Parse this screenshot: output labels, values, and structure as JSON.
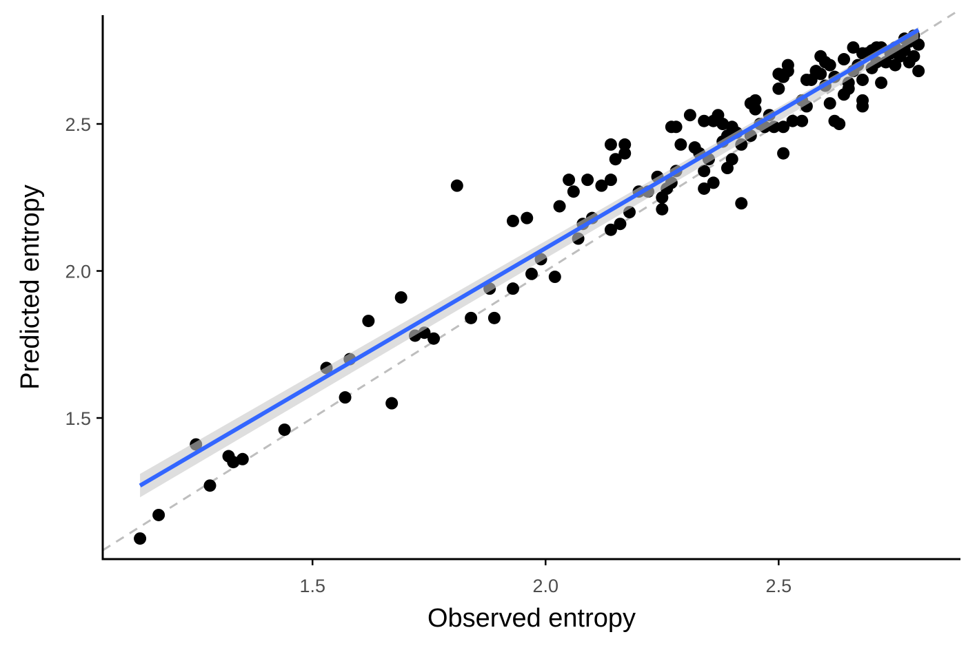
{
  "chart_data": {
    "type": "scatter",
    "title": "",
    "xlabel": "Observed entropy",
    "ylabel": "Predicted entropy",
    "xlim": [
      1.05,
      2.89
    ],
    "ylim": [
      1.02,
      2.87
    ],
    "x_ticks": [
      1.5,
      2.0,
      2.5
    ],
    "y_ticks": [
      1.5,
      2.0,
      2.5
    ],
    "x_tick_labels": [
      "1.5",
      "2.0",
      "2.5"
    ],
    "y_tick_labels": [
      "1.5",
      "2.0",
      "2.5"
    ],
    "grid": false,
    "legend": "none",
    "colors": {
      "points": "#000000",
      "fit_line": "#3366FF",
      "confidence_band": "#c8c8c8",
      "identity_line": "#bebebe",
      "axis": "#000000",
      "tick_labels": "#4d4d4d"
    },
    "identity_line": {
      "slope": 1,
      "intercept": 0,
      "style": "dashed"
    },
    "fit_line": {
      "x": [
        1.13,
        2.8
      ],
      "y": [
        1.27,
        2.82
      ],
      "ci_upper": [
        1.31,
        2.83
      ],
      "ci_lower": [
        1.23,
        2.79
      ]
    },
    "points": [
      [
        1.13,
        1.09
      ],
      [
        1.17,
        1.17
      ],
      [
        1.25,
        1.41
      ],
      [
        1.28,
        1.27
      ],
      [
        1.32,
        1.37
      ],
      [
        1.33,
        1.35
      ],
      [
        1.35,
        1.36
      ],
      [
        1.44,
        1.46
      ],
      [
        1.53,
        1.67
      ],
      [
        1.57,
        1.57
      ],
      [
        1.58,
        1.7
      ],
      [
        1.62,
        1.83
      ],
      [
        1.67,
        1.55
      ],
      [
        1.69,
        1.91
      ],
      [
        1.72,
        1.78
      ],
      [
        1.74,
        1.79
      ],
      [
        1.76,
        1.77
      ],
      [
        1.81,
        2.29
      ],
      [
        1.84,
        1.84
      ],
      [
        1.88,
        1.94
      ],
      [
        1.89,
        1.84
      ],
      [
        1.93,
        2.17
      ],
      [
        1.93,
        1.94
      ],
      [
        1.96,
        2.18
      ],
      [
        1.97,
        1.99
      ],
      [
        1.99,
        2.04
      ],
      [
        2.02,
        1.98
      ],
      [
        2.03,
        2.22
      ],
      [
        2.05,
        2.31
      ],
      [
        2.06,
        2.27
      ],
      [
        2.07,
        2.11
      ],
      [
        2.08,
        2.16
      ],
      [
        2.09,
        2.31
      ],
      [
        2.1,
        2.18
      ],
      [
        2.12,
        2.29
      ],
      [
        2.14,
        2.14
      ],
      [
        2.14,
        2.43
      ],
      [
        2.14,
        2.31
      ],
      [
        2.15,
        2.38
      ],
      [
        2.16,
        2.16
      ],
      [
        2.17,
        2.43
      ],
      [
        2.17,
        2.4
      ],
      [
        2.18,
        2.2
      ],
      [
        2.2,
        2.27
      ],
      [
        2.22,
        2.27
      ],
      [
        2.24,
        2.32
      ],
      [
        2.25,
        2.21
      ],
      [
        2.25,
        2.25
      ],
      [
        2.26,
        2.28
      ],
      [
        2.27,
        2.3
      ],
      [
        2.27,
        2.49
      ],
      [
        2.28,
        2.34
      ],
      [
        2.28,
        2.49
      ],
      [
        2.29,
        2.43
      ],
      [
        2.31,
        2.53
      ],
      [
        2.32,
        2.42
      ],
      [
        2.33,
        2.4
      ],
      [
        2.34,
        2.34
      ],
      [
        2.34,
        2.51
      ],
      [
        2.34,
        2.28
      ],
      [
        2.35,
        2.38
      ],
      [
        2.36,
        2.3
      ],
      [
        2.36,
        2.51
      ],
      [
        2.37,
        2.53
      ],
      [
        2.38,
        2.5
      ],
      [
        2.38,
        2.44
      ],
      [
        2.39,
        2.35
      ],
      [
        2.39,
        2.46
      ],
      [
        2.4,
        2.38
      ],
      [
        2.4,
        2.49
      ],
      [
        2.41,
        2.47
      ],
      [
        2.42,
        2.43
      ],
      [
        2.42,
        2.23
      ],
      [
        2.44,
        2.46
      ],
      [
        2.44,
        2.57
      ],
      [
        2.45,
        2.58
      ],
      [
        2.45,
        2.55
      ],
      [
        2.46,
        2.5
      ],
      [
        2.47,
        2.49
      ],
      [
        2.48,
        2.53
      ],
      [
        2.49,
        2.49
      ],
      [
        2.5,
        2.67
      ],
      [
        2.5,
        2.62
      ],
      [
        2.51,
        2.49
      ],
      [
        2.51,
        2.66
      ],
      [
        2.51,
        2.4
      ],
      [
        2.52,
        2.7
      ],
      [
        2.52,
        2.68
      ],
      [
        2.53,
        2.51
      ],
      [
        2.55,
        2.58
      ],
      [
        2.55,
        2.51
      ],
      [
        2.56,
        2.65
      ],
      [
        2.56,
        2.56
      ],
      [
        2.57,
        2.65
      ],
      [
        2.58,
        2.68
      ],
      [
        2.59,
        2.67
      ],
      [
        2.59,
        2.73
      ],
      [
        2.6,
        2.63
      ],
      [
        2.6,
        2.71
      ],
      [
        2.61,
        2.57
      ],
      [
        2.61,
        2.7
      ],
      [
        2.62,
        2.51
      ],
      [
        2.62,
        2.66
      ],
      [
        2.63,
        2.5
      ],
      [
        2.64,
        2.6
      ],
      [
        2.64,
        2.72
      ],
      [
        2.65,
        2.64
      ],
      [
        2.65,
        2.62
      ],
      [
        2.66,
        2.68
      ],
      [
        2.66,
        2.76
      ],
      [
        2.67,
        2.7
      ],
      [
        2.68,
        2.74
      ],
      [
        2.68,
        2.65
      ],
      [
        2.68,
        2.58
      ],
      [
        2.68,
        2.56
      ],
      [
        2.69,
        2.74
      ],
      [
        2.7,
        2.69
      ],
      [
        2.7,
        2.75
      ],
      [
        2.71,
        2.76
      ],
      [
        2.71,
        2.71
      ],
      [
        2.72,
        2.64
      ],
      [
        2.72,
        2.76
      ],
      [
        2.73,
        2.71
      ],
      [
        2.74,
        2.74
      ],
      [
        2.75,
        2.7
      ],
      [
        2.75,
        2.76
      ],
      [
        2.76,
        2.73
      ],
      [
        2.77,
        2.79
      ],
      [
        2.77,
        2.75
      ],
      [
        2.78,
        2.78
      ],
      [
        2.78,
        2.71
      ],
      [
        2.79,
        2.73
      ],
      [
        2.79,
        2.8
      ],
      [
        2.8,
        2.77
      ],
      [
        2.8,
        2.68
      ]
    ]
  }
}
